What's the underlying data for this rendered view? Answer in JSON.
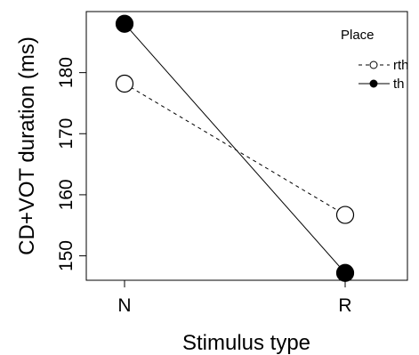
{
  "chart_data": {
    "type": "line",
    "xlabel": "Stimulus type",
    "ylabel": "CD+VOT duration (ms)",
    "categories": [
      "N",
      "R"
    ],
    "yticks": [
      150,
      160,
      170,
      180
    ],
    "ylim": [
      146,
      190
    ],
    "grid": false,
    "legend": {
      "title": "Place",
      "placement": "top-right"
    },
    "series": [
      {
        "name": "rth",
        "values": [
          178.2,
          156.7
        ],
        "line_style": "dashed",
        "marker": "open-circle"
      },
      {
        "name": "th",
        "values": [
          188.0,
          147.2
        ],
        "line_style": "solid",
        "marker": "filled-circle"
      }
    ]
  }
}
